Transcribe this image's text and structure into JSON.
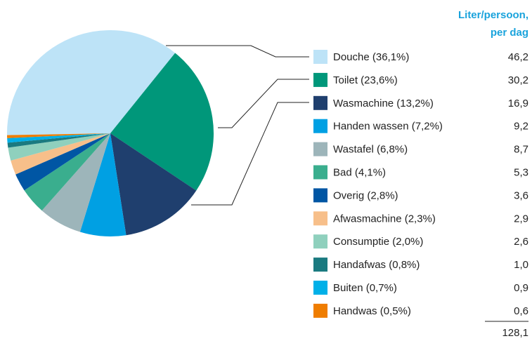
{
  "chart_data": {
    "type": "pie",
    "column_header": [
      "Liter/persoon,",
      "per dag"
    ],
    "categories": [
      "Douche (36,1%)",
      "Toilet (23,6%)",
      "Wasmachine (13,2%)",
      "Handen wassen (7,2%)",
      "Wastafel (6,8%)",
      "Bad (4,1%)",
      "Overig (2,8%)",
      "Afwasmachine (2,3%)",
      "Consumptie (2,0%)",
      "Handafwas (0,8%)",
      "Buiten (0,7%)",
      "Handwas (0,5%)"
    ],
    "values": [
      46.2,
      30.2,
      16.9,
      9.2,
      8.7,
      5.3,
      3.6,
      2.9,
      2.6,
      1.0,
      0.9,
      0.6
    ],
    "value_labels": [
      "46,2",
      "30,2",
      "16,9",
      "9,2",
      "8,7",
      "5,3",
      "3,6",
      "2,9",
      "2,6",
      "1,0",
      "0,9",
      "0,6"
    ],
    "colors": [
      "#bde3f7",
      "#00977a",
      "#1f3f6e",
      "#00a0e3",
      "#9db5ba",
      "#3aae8e",
      "#0056a4",
      "#f7bf8a",
      "#8fd0bd",
      "#1a7a80",
      "#00b0e8",
      "#ef7d00"
    ],
    "total": 128.1,
    "total_label": "128,1"
  }
}
